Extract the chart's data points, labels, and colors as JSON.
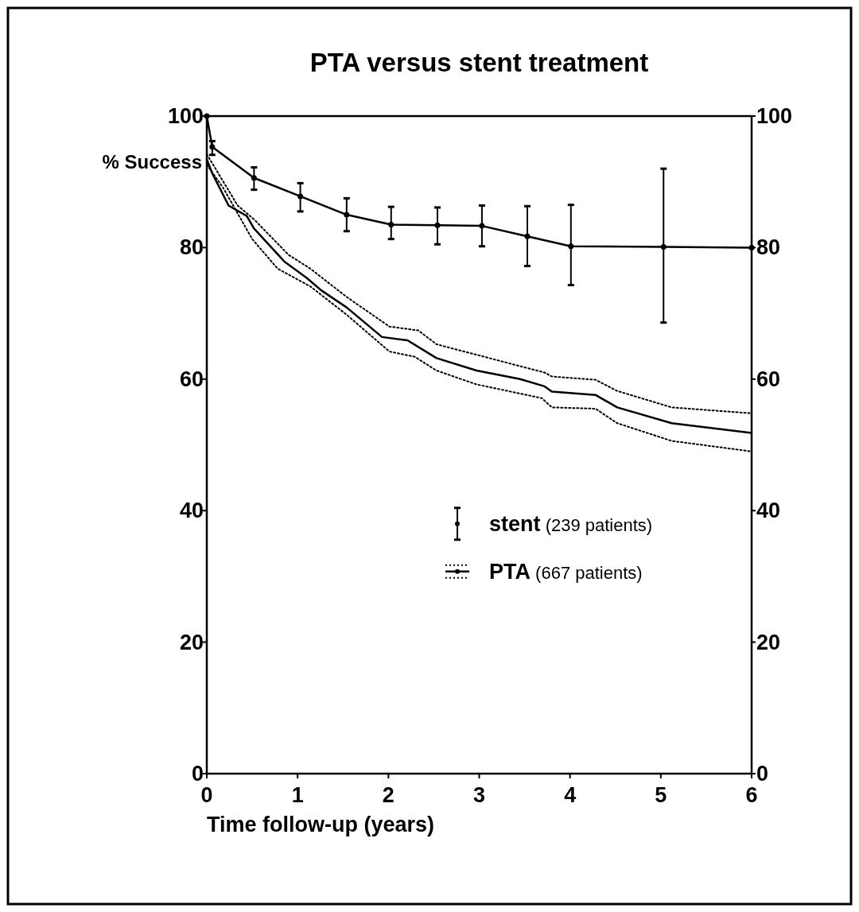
{
  "chart_data": {
    "type": "line",
    "title": "PTA versus stent treatment",
    "xlabel": "Time follow-up (years)",
    "ylabel": "% Success",
    "xlim": [
      0,
      6
    ],
    "xticks": [
      0,
      1,
      2,
      3,
      4,
      5,
      6
    ],
    "ylim": [
      0,
      100
    ],
    "yticks": [
      0,
      20,
      40,
      60,
      80,
      100
    ],
    "y2lim": [
      0,
      100
    ],
    "y2ticks": [
      0,
      20,
      40,
      60,
      80,
      100
    ],
    "grid": false,
    "legend": "right",
    "series": [
      {
        "name": "stent (239 patients)",
        "color": "#000000",
        "marker": "circle",
        "line_style": "solid",
        "x": [
          0,
          0.06,
          0.52,
          1.03,
          1.54,
          2.03,
          2.54,
          3.03,
          3.53,
          4.01,
          5.03,
          6
        ],
        "values": [
          100,
          95.3,
          90.6,
          87.8,
          85,
          83.5,
          83.4,
          83.3,
          81.7,
          80.2,
          80.1,
          80
        ],
        "errors": [
          null,
          [
            94.1,
            96.2
          ],
          [
            88.8,
            92.2
          ],
          [
            85.5,
            89.8
          ],
          [
            82.5,
            87.5
          ],
          [
            81.3,
            86.2
          ],
          [
            80.5,
            86.1
          ],
          [
            80.2,
            86.4
          ],
          [
            77.2,
            86.3
          ],
          [
            74.3,
            86.5
          ],
          [
            68.6,
            92
          ],
          null
        ]
      },
      {
        "name": "PTA (667 patients)",
        "color": "#000000",
        "marker": "none",
        "line_style": "solid",
        "x": [
          0,
          0.06,
          0.24,
          0.44,
          0.52,
          0.86,
          1.1,
          1.26,
          1.54,
          1.93,
          2.21,
          2.53,
          2.97,
          3.45,
          3.72,
          3.8,
          4.28,
          4.52,
          5.12,
          6
        ],
        "values": [
          93.4,
          91.3,
          86.4,
          84.8,
          82.9,
          77.8,
          75.4,
          73.5,
          70.9,
          66.4,
          65.9,
          63.2,
          61.3,
          60,
          58.9,
          58.1,
          57.6,
          55.7,
          53.3,
          51.8
        ]
      },
      {
        "color": "#000000",
        "marker": "none",
        "line_style": "dotted",
        "x": [
          0,
          0.34,
          0.52,
          0.9,
          1.14,
          1.54,
          2.01,
          2.33,
          2.53,
          2.97,
          3.72,
          3.8,
          4.28,
          4.52,
          5.12,
          6
        ],
        "values": [
          94.2,
          86.4,
          84.3,
          78.9,
          76.8,
          72.5,
          68,
          67.4,
          65.3,
          63.7,
          61,
          60.4,
          59.9,
          58.2,
          55.7,
          54.8
        ]
      },
      {
        "color": "#000000",
        "marker": "none",
        "line_style": "dotted",
        "x": [
          0,
          0.18,
          0.5,
          0.78,
          1.14,
          1.54,
          2.01,
          2.29,
          2.53,
          2.97,
          3.69,
          3.8,
          4.28,
          4.52,
          5.12,
          6
        ],
        "values": [
          92.6,
          89.1,
          81.3,
          76.8,
          74.1,
          69.8,
          64.2,
          63.4,
          61.3,
          59.2,
          57.1,
          55.7,
          55.5,
          53.3,
          50.6,
          49
        ]
      }
    ]
  }
}
